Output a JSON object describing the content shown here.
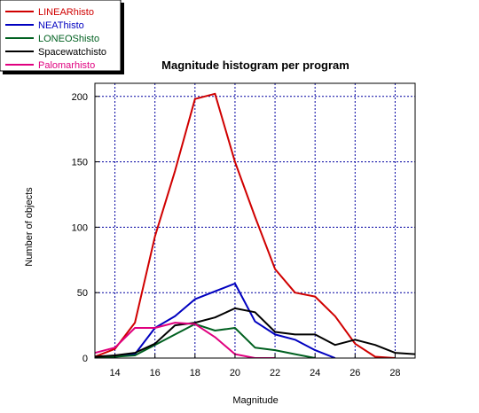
{
  "chart_data": {
    "type": "line",
    "title": "Magnitude histogram per program",
    "xlabel": "Magnitude",
    "ylabel": "Number of objects",
    "xlim": [
      13,
      29
    ],
    "ylim": [
      0,
      210
    ],
    "xticks": [
      14,
      16,
      18,
      20,
      22,
      24,
      26,
      28
    ],
    "yticks": [
      0,
      50,
      100,
      150,
      200
    ],
    "grid": true,
    "legend_position": "top-left",
    "series": [
      {
        "name": "LINEARhisto",
        "color": "#d00000",
        "x": [
          13,
          14,
          15,
          16,
          17,
          18,
          19,
          20,
          21,
          22,
          23,
          24,
          25,
          26,
          27,
          28
        ],
        "y": [
          1,
          7,
          27,
          93,
          143,
          198,
          202,
          150,
          108,
          68,
          50,
          47,
          32,
          11,
          1,
          0
        ]
      },
      {
        "name": "NEAThisto",
        "color": "#0000c0",
        "x": [
          13,
          14,
          15,
          16,
          17,
          18,
          19,
          20,
          21,
          22,
          23,
          24,
          25
        ],
        "y": [
          0,
          1,
          3,
          23,
          32,
          45,
          51,
          57,
          28,
          18,
          14,
          6,
          0
        ]
      },
      {
        "name": "LONEOShisto",
        "color": "#006020",
        "x": [
          13,
          14,
          15,
          16,
          17,
          18,
          19,
          20,
          21,
          22,
          23,
          24
        ],
        "y": [
          0,
          1,
          2,
          10,
          18,
          26,
          21,
          23,
          8,
          6,
          3,
          0
        ]
      },
      {
        "name": "Spacewatchisto",
        "color": "#000000",
        "x": [
          13,
          14,
          15,
          16,
          17,
          18,
          19,
          20,
          21,
          22,
          23,
          24,
          25,
          26,
          27,
          28,
          29
        ],
        "y": [
          1,
          2,
          4,
          11,
          25,
          27,
          31,
          38,
          35,
          20,
          18,
          18,
          10,
          14,
          10,
          4,
          3
        ]
      },
      {
        "name": "Palomarhisto",
        "color": "#e0007f",
        "x": [
          13,
          14,
          15,
          16,
          17,
          18,
          19,
          20,
          21,
          22
        ],
        "y": [
          4,
          8,
          23,
          23,
          27,
          26,
          16,
          3,
          0,
          0
        ]
      }
    ]
  }
}
